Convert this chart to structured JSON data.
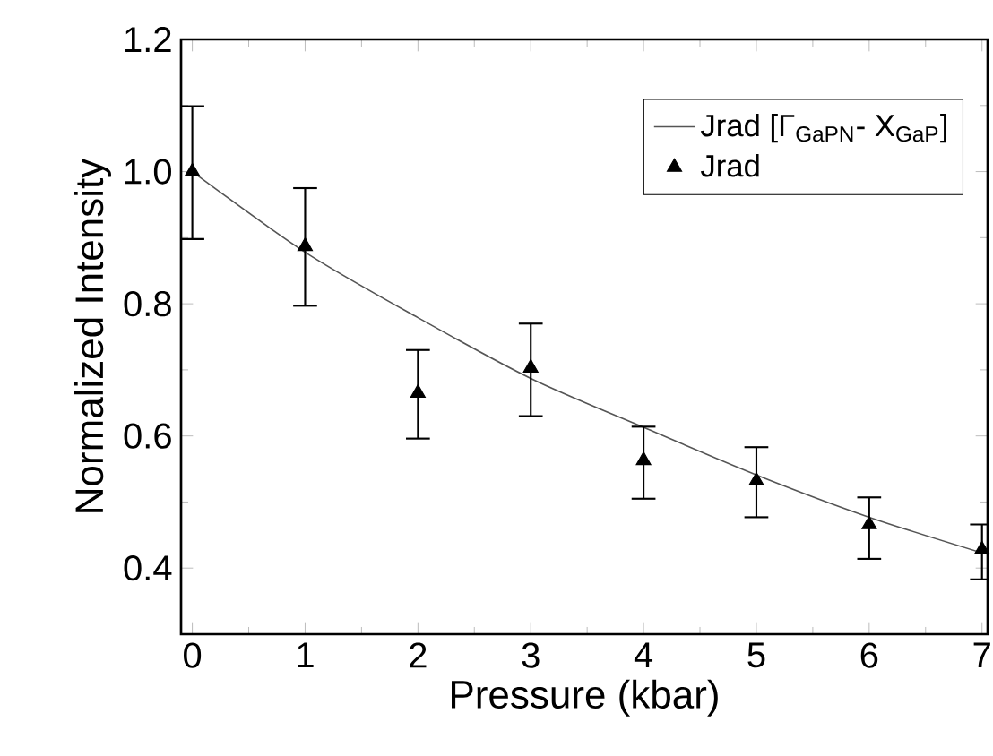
{
  "chart_data": {
    "type": "line",
    "xlabel": "Pressure (kbar)",
    "ylabel": "Normalized Intensity",
    "xlim": [
      -0.1,
      7.05
    ],
    "ylim": [
      0.3,
      1.2
    ],
    "xticks": [
      0,
      1,
      2,
      3,
      4,
      5,
      6,
      7
    ],
    "yticks": [
      0.4,
      0.6,
      0.8,
      {
        "value": 1.0,
        "label": "1.0"
      },
      1.2
    ],
    "legend": "top right",
    "grid": false,
    "series": [
      {
        "name": "Jrad [Γ$_{GaPN}$- X$_{GaP}$]",
        "color": "#555555",
        "marker": "none",
        "line_style": "solid",
        "x": [
          0,
          1,
          2,
          3,
          4,
          5,
          6,
          7
        ],
        "values": [
          1.0,
          0.878,
          0.779,
          0.687,
          0.613,
          0.541,
          0.477,
          0.423
        ]
      },
      {
        "name": "Jrad",
        "type": "scatter",
        "color": "#000000",
        "marker": "triangle",
        "x": [
          0,
          1,
          2,
          3,
          4,
          5,
          6,
          7
        ],
        "values": [
          1.0,
          0.887,
          0.665,
          0.703,
          0.563,
          0.532,
          0.466,
          0.428
        ],
        "errors": [
          [
            0.898,
            1.099
          ],
          [
            0.797,
            0.975
          ],
          [
            0.596,
            0.73
          ],
          [
            0.63,
            0.77
          ],
          [
            0.505,
            0.614
          ],
          [
            0.477,
            0.583
          ],
          [
            0.414,
            0.507
          ],
          [
            0.383,
            0.466
          ]
        ]
      }
    ]
  }
}
